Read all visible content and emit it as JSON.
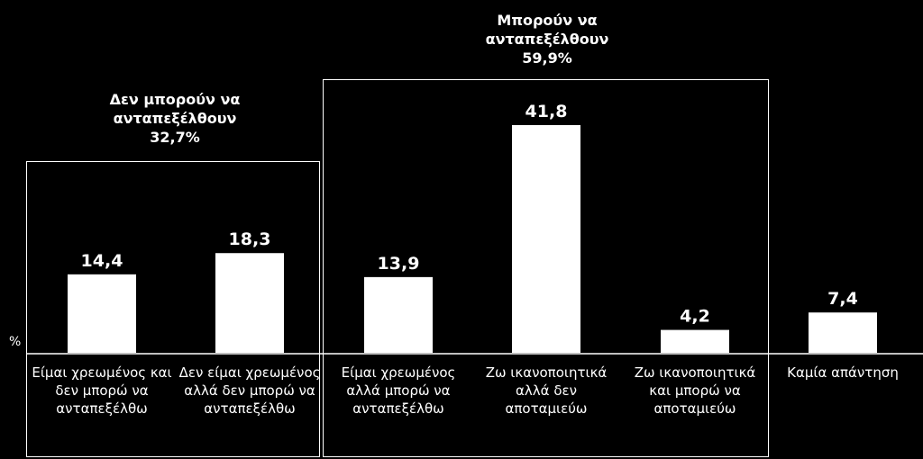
{
  "chart_data": {
    "type": "bar",
    "unit": "%",
    "categories": [
      "Είμαι χρεωμένος και δεν μπορώ να ανταπεξέλθω",
      "Δεν είμαι χρεωμένος αλλά δεν μπορώ να ανταπεξέλθω",
      "Είμαι χρεωμένος αλλά μπορώ να ανταπεξέλθω",
      "Ζω ικανοποιητικά αλλά δεν αποταμιεύω",
      "Ζω ικανοποιητικά και μπορώ να αποταμιεύω",
      "Καμία απάντηση"
    ],
    "values": [
      14.4,
      18.3,
      13.9,
      41.8,
      4.2,
      7.4
    ],
    "value_labels": [
      "14,4",
      "18,3",
      "13,9",
      "41,8",
      "4,2",
      "7,4"
    ],
    "ylim": [
      0,
      45
    ],
    "grid": false,
    "groups": [
      {
        "line1": "Δεν μπορούν να",
        "line2": "ανταπεξέλθουν",
        "line3": "32,7%",
        "members": [
          0,
          1
        ]
      },
      {
        "line1": "Μπορούν να",
        "line2": "ανταπεξέλθουν",
        "line3": "59,9%",
        "members": [
          2,
          3,
          4
        ]
      }
    ]
  },
  "colors": {
    "background": "#000000",
    "bar": "#ffffff",
    "text": "#ffffff"
  }
}
